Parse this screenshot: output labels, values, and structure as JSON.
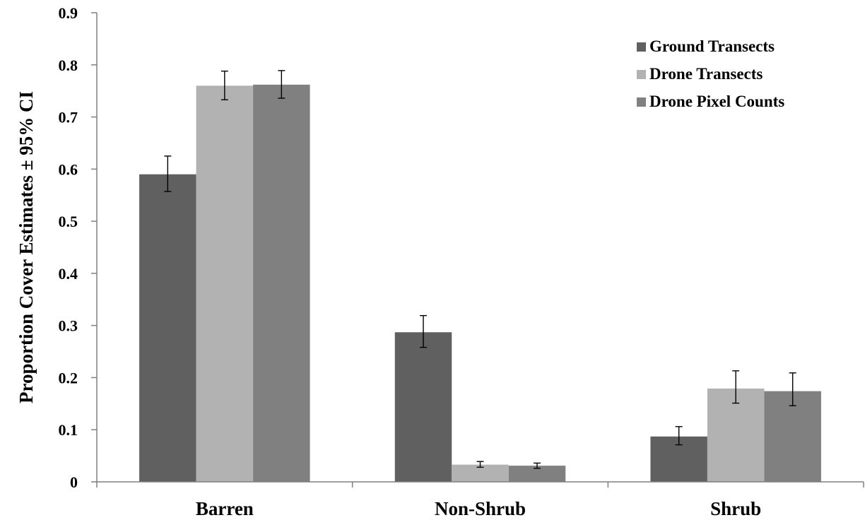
{
  "chart_data": {
    "type": "bar",
    "title": "",
    "xlabel": "",
    "ylabel": "Proportion Cover Estimates ± 95% CI",
    "ylim": [
      0,
      0.9
    ],
    "yticks": [
      "0",
      "0.1",
      "0.2",
      "0.3",
      "0.4",
      "0.5",
      "0.6",
      "0.7",
      "0.8",
      "0.9"
    ],
    "categories": [
      "Barren",
      "Non-Shrub",
      "Shrub"
    ],
    "grid": false,
    "legend": "top-right",
    "error_bars": "95% CI",
    "series": [
      {
        "name": "Ground Transects",
        "color": "#606060",
        "values": [
          0.59,
          0.287,
          0.087
        ],
        "ci": [
          [
            0.557,
            0.625
          ],
          [
            0.258,
            0.319
          ],
          [
            0.071,
            0.106
          ]
        ]
      },
      {
        "name": "Drone Transects",
        "color": "#b2b2b2",
        "values": [
          0.76,
          0.033,
          0.179
        ],
        "ci": [
          [
            0.733,
            0.788
          ],
          [
            0.028,
            0.039
          ],
          [
            0.151,
            0.213
          ]
        ]
      },
      {
        "name": "Drone Pixel Counts",
        "color": "#808080",
        "values": [
          0.762,
          0.031,
          0.174
        ],
        "ci": [
          [
            0.736,
            0.789
          ],
          [
            0.026,
            0.036
          ],
          [
            0.146,
            0.209
          ]
        ]
      }
    ]
  }
}
